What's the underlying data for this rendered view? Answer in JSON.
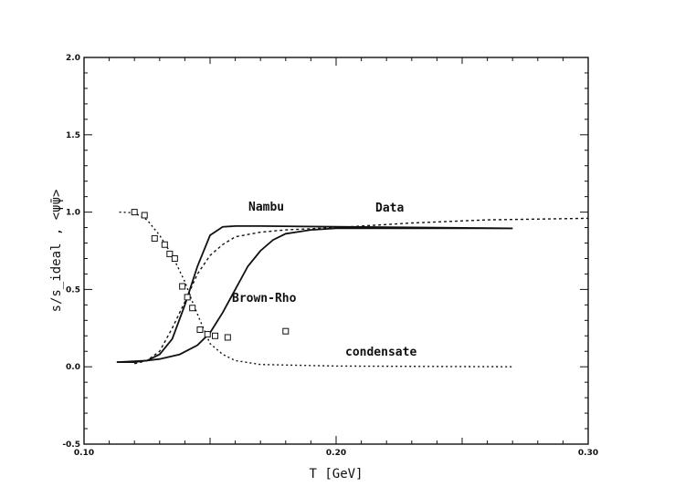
{
  "chart_data": {
    "type": "line",
    "xlabel": "T [GeV]",
    "ylabel": "s/s_ideal , <ψ̄ψ>",
    "xlim": [
      0.1,
      0.3
    ],
    "ylim": [
      -0.5,
      2.0
    ],
    "x_ticks_labeled": [
      "0.10",
      "0.20",
      "0.30"
    ],
    "y_ticks_labeled": [
      "-0.5",
      "0.0",
      "0.5",
      "1.0",
      "1.5",
      "2.0"
    ],
    "annotations": {
      "nambu": "Nambu",
      "data": "Data",
      "brown_rho": "Brown-Rho",
      "condensate": "condensate"
    },
    "series": [
      {
        "style": "solid",
        "points": [
          [
            0.113,
            0.03
          ],
          [
            0.12,
            0.03
          ],
          [
            0.125,
            0.04
          ],
          [
            0.13,
            0.08
          ],
          [
            0.135,
            0.18
          ],
          [
            0.14,
            0.4
          ],
          [
            0.145,
            0.65
          ],
          [
            0.15,
            0.85
          ],
          [
            0.155,
            0.905
          ],
          [
            0.16,
            0.91
          ],
          [
            0.17,
            0.91
          ],
          [
            0.2,
            0.905
          ],
          [
            0.27,
            0.895
          ]
        ]
      },
      {
        "style": "dashed",
        "points": [
          [
            0.12,
            0.02
          ],
          [
            0.125,
            0.04
          ],
          [
            0.13,
            0.1
          ],
          [
            0.135,
            0.25
          ],
          [
            0.14,
            0.42
          ],
          [
            0.145,
            0.6
          ],
          [
            0.15,
            0.72
          ],
          [
            0.155,
            0.79
          ],
          [
            0.16,
            0.84
          ],
          [
            0.17,
            0.87
          ],
          [
            0.18,
            0.885
          ],
          [
            0.2,
            0.9
          ],
          [
            0.23,
            0.93
          ],
          [
            0.26,
            0.95
          ],
          [
            0.3,
            0.96
          ]
        ]
      },
      {
        "style": "solid",
        "points": [
          [
            0.113,
            0.03
          ],
          [
            0.125,
            0.04
          ],
          [
            0.13,
            0.05
          ],
          [
            0.138,
            0.08
          ],
          [
            0.145,
            0.14
          ],
          [
            0.15,
            0.22
          ],
          [
            0.155,
            0.35
          ],
          [
            0.16,
            0.5
          ],
          [
            0.165,
            0.65
          ],
          [
            0.17,
            0.75
          ],
          [
            0.175,
            0.82
          ],
          [
            0.18,
            0.86
          ],
          [
            0.19,
            0.885
          ],
          [
            0.2,
            0.895
          ],
          [
            0.27,
            0.895
          ]
        ]
      },
      {
        "style": "dotted",
        "name": "condensate",
        "points": [
          [
            0.114,
            1.0
          ],
          [
            0.12,
            0.995
          ],
          [
            0.125,
            0.95
          ],
          [
            0.13,
            0.85
          ],
          [
            0.135,
            0.72
          ],
          [
            0.14,
            0.55
          ],
          [
            0.143,
            0.42
          ],
          [
            0.146,
            0.3
          ],
          [
            0.15,
            0.15
          ],
          [
            0.155,
            0.08
          ],
          [
            0.16,
            0.04
          ],
          [
            0.17,
            0.015
          ],
          [
            0.2,
            0.005
          ],
          [
            0.27,
            0.0
          ]
        ]
      }
    ],
    "scatter": {
      "marker": "open-square",
      "points": [
        [
          0.12,
          1.0
        ],
        [
          0.124,
          0.98
        ],
        [
          0.128,
          0.83
        ],
        [
          0.132,
          0.79
        ],
        [
          0.134,
          0.73
        ],
        [
          0.136,
          0.7
        ],
        [
          0.139,
          0.52
        ],
        [
          0.141,
          0.45
        ],
        [
          0.143,
          0.38
        ],
        [
          0.146,
          0.24
        ],
        [
          0.149,
          0.21
        ],
        [
          0.152,
          0.2
        ],
        [
          0.157,
          0.19
        ],
        [
          0.18,
          0.23
        ]
      ]
    }
  }
}
